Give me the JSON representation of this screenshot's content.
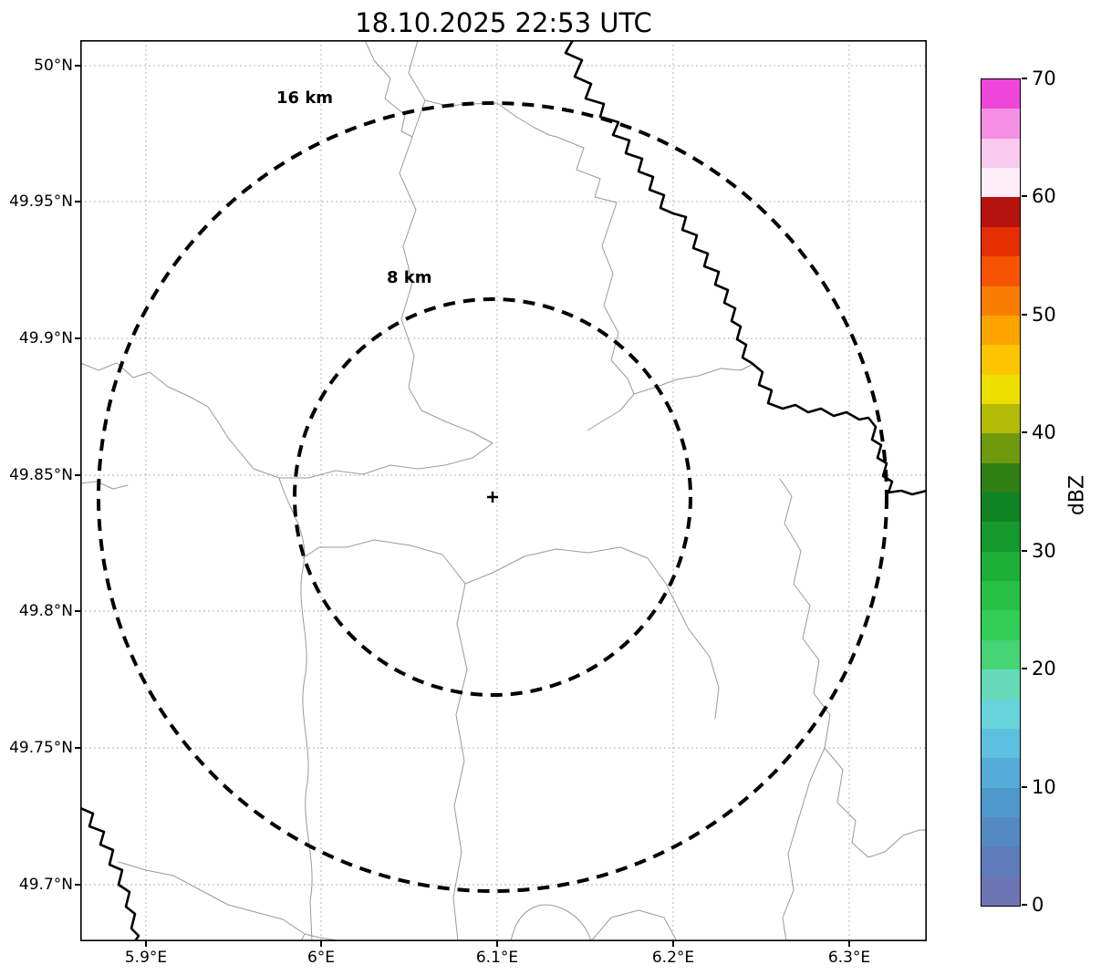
{
  "title": "18.10.2025 22:53 UTC",
  "map": {
    "x_tick_labels": [
      "5.9°E",
      "6°E",
      "6.1°E",
      "6.2°E",
      "6.3°E"
    ],
    "y_tick_labels": [
      "50°N",
      "49.95°N",
      "49.9°N",
      "49.85°N",
      "49.8°N",
      "49.75°N",
      "49.7°N"
    ],
    "ring_labels": {
      "outer": "16 km",
      "inner": "8 km"
    },
    "center_marker": "+"
  },
  "colorbar": {
    "axis_label": "dBZ",
    "tick_labels_top_to_bottom": [
      "70",
      "60",
      "50",
      "40",
      "30",
      "20",
      "10",
      "0"
    ],
    "segment_colors_bottom_to_top": [
      "#6d74b4",
      "#5f7cba",
      "#5589c4",
      "#4f98ce",
      "#54abd8",
      "#5dc0de",
      "#67d4dc",
      "#65d9b8",
      "#46d476",
      "#31cd55",
      "#27c044",
      "#1daf37",
      "#16992c",
      "#108322",
      "#2f7f15",
      "#6f9a0e",
      "#b3bb06",
      "#eede00",
      "#fdc500",
      "#fca300",
      "#f97e00",
      "#f65300",
      "#e62e03",
      "#b5120d",
      "#fdeef8",
      "#fac9ef",
      "#f590e6",
      "#ee46d8"
    ]
  },
  "chart_data": {
    "type": "heatmap",
    "subtype": "weather radar reflectivity map with range rings",
    "title": "18.10.2025 22:53 UTC",
    "x_axis": {
      "tick_values": [
        5.9,
        6.0,
        6.1,
        6.2,
        6.3
      ],
      "tick_labels": [
        "5.9°E",
        "6°E",
        "6.1°E",
        "6.2°E",
        "6.3°E"
      ],
      "range_deg_e": [
        5.862,
        6.345
      ]
    },
    "y_axis": {
      "tick_values": [
        50.0,
        49.95,
        49.9,
        49.85,
        49.8,
        49.75,
        49.7
      ],
      "tick_labels": [
        "50°N",
        "49.95°N",
        "49.9°N",
        "49.85°N",
        "49.8°N",
        "49.75°N",
        "49.7°N"
      ],
      "range_deg_n": [
        49.678,
        50.009
      ]
    },
    "grid": true,
    "radar_center": {
      "lon_deg_e": 6.1,
      "lat_deg_n": 49.843,
      "marker": "+"
    },
    "range_rings_km": [
      8,
      16
    ],
    "reflectivity_echoes": [],
    "colorbar": {
      "label": "dBZ",
      "min_dbz": 0,
      "max_dbz": 70,
      "tick_values": [
        0,
        10,
        20,
        30,
        40,
        50,
        60,
        70
      ],
      "segment_step_dbz": 2.5,
      "position": "right"
    },
    "basemap_features": [
      "thin gray administrative boundaries",
      "thick black national border / river"
    ]
  }
}
